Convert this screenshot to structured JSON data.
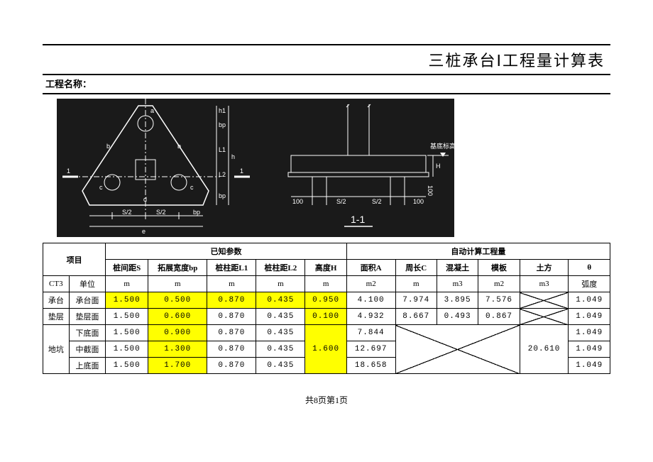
{
  "title": "三桩承台Ⅰ工程量计算表",
  "project_label": "工程名称：",
  "footer": "共8页第1页",
  "diagram": {
    "bg": "#1a1a1a",
    "stroke": "#ffffff",
    "labels_left": {
      "a": "a",
      "b": "b",
      "c": "c",
      "d": "d",
      "e": "e",
      "S2": "S/2",
      "one": "1",
      "bp": "bp",
      "L1": "L1",
      "L2": "L2",
      "h": "h",
      "h1": "h1"
    },
    "labels_right": {
      "S2": "S/2",
      "hundred": "100",
      "H": "H",
      "base": "基底标高",
      "sec": "1-1"
    }
  },
  "table": {
    "group1": "项目",
    "group2": "已知参数",
    "group3": "自动计算工程量",
    "cols_known": [
      "桩间距S",
      "拓展宽度bp",
      "桩柱距L1",
      "桩柱距L2",
      "高度H"
    ],
    "cols_calc": [
      "面积A",
      "周长C",
      "混凝土",
      "模板",
      "土方",
      "θ"
    ],
    "ct3": "CT3",
    "unit_label": "单位",
    "units": [
      "m",
      "m",
      "m",
      "m",
      "m",
      "m2",
      "m",
      "m3",
      "m2",
      "m3",
      "弧度"
    ],
    "rows": [
      {
        "g": "承台",
        "n": "承台面",
        "v": [
          "1.500",
          "0.500",
          "0.870",
          "0.435",
          "0.950",
          "4.100",
          "7.974",
          "3.895",
          "7.576",
          "X",
          "1.049"
        ],
        "yellow": [
          0,
          1,
          2,
          3,
          4
        ]
      },
      {
        "g": "垫层",
        "n": "垫层面",
        "v": [
          "1.500",
          "0.600",
          "0.870",
          "0.435",
          "0.100",
          "4.932",
          "8.667",
          "0.493",
          "0.867",
          "X",
          "1.049"
        ],
        "yellow": [
          1,
          4
        ]
      },
      {
        "g": "地坑",
        "n": "下底面",
        "v": [
          "1.500",
          "0.900",
          "0.870",
          "0.435",
          "",
          "7.844",
          "",
          "",
          "",
          "",
          "1.049"
        ],
        "yellow": [
          1
        ]
      },
      {
        "g": "地坑",
        "n": "中截面",
        "v": [
          "1.500",
          "1.300",
          "0.870",
          "0.435",
          "1.600",
          "12.697",
          "",
          "",
          "",
          "20.610",
          "1.049"
        ],
        "yellow": [
          1,
          4
        ]
      },
      {
        "g": "地坑",
        "n": "上底面",
        "v": [
          "1.500",
          "1.700",
          "0.870",
          "0.435",
          "",
          "18.658",
          "",
          "",
          "",
          "",
          "1.049"
        ],
        "yellow": [
          1
        ]
      }
    ],
    "pit_label": "地坑"
  }
}
